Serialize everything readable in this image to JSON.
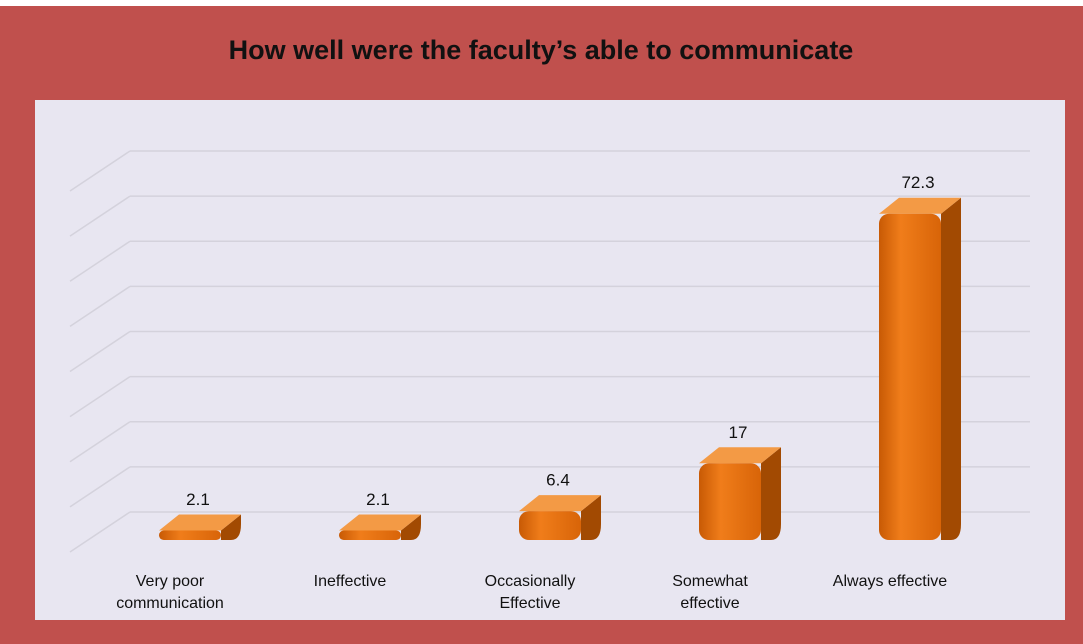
{
  "chart_data": {
    "type": "bar",
    "title": "How well were the faculty’s able to communicate",
    "categories": [
      "Very poor communication",
      "Ineffective",
      "Occasionally Effective",
      "Somewhat effective",
      "Always effective"
    ],
    "values": [
      2.1,
      2.1,
      6.4,
      17,
      72.3
    ],
    "color": "#e36c0a",
    "ylim": [
      0,
      80
    ],
    "yticks": [
      0,
      10,
      20,
      30,
      40,
      50,
      60,
      70,
      80
    ],
    "grid": true
  }
}
